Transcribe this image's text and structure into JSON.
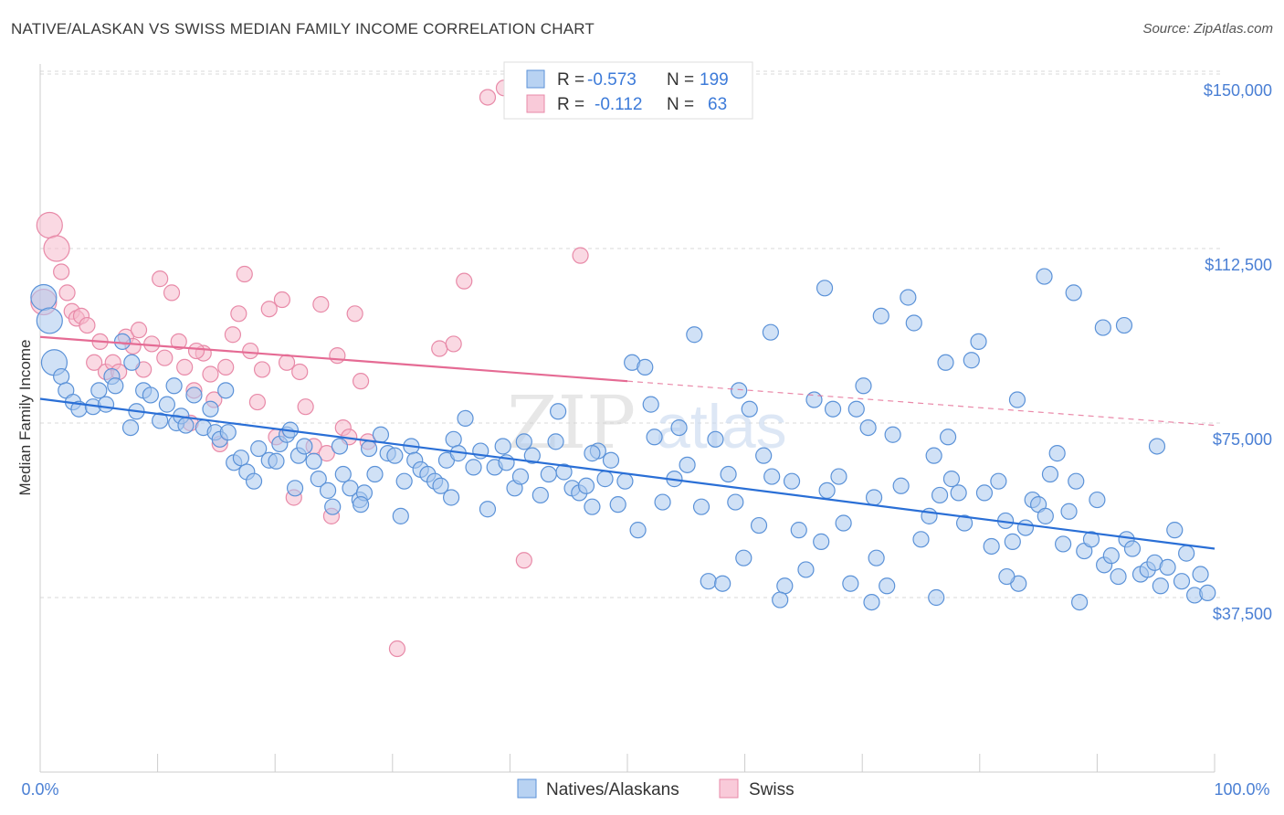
{
  "title": "NATIVE/ALASKAN VS SWISS MEDIAN FAMILY INCOME CORRELATION CHART",
  "source": "Source: ZipAtlas.com",
  "watermark": {
    "zip": "ZIP",
    "atlas": "atlas"
  },
  "colors": {
    "blue_fill": "#a9c8ee",
    "blue_stroke": "#5b92d8",
    "blue_line": "#2a6fd6",
    "pink_fill": "#f6b9cc",
    "pink_stroke": "#e88aa8",
    "pink_line": "#e56b94",
    "grid": "#d9d9d9",
    "tick_text": "#4a7fd4"
  },
  "legend": {
    "rows": [
      {
        "r_label": "R =",
        "r_value": "-0.573",
        "n_label": "N =",
        "n_value": "199"
      },
      {
        "r_label": "R =",
        "r_value": "-0.112",
        "n_label": "N =",
        "n_value": "63"
      }
    ]
  },
  "chart_data": {
    "type": "scatter",
    "title": "NATIVE/ALASKAN VS SWISS MEDIAN FAMILY INCOME CORRELATION CHART",
    "xlabel": "",
    "ylabel": "Median Family Income",
    "xlim": [
      0,
      100
    ],
    "ylim": [
      0,
      155000
    ],
    "x_tick_labels": [
      "0.0%",
      "100.0%"
    ],
    "y_ticks": [
      37500,
      75000,
      112500,
      150000
    ],
    "y_tick_labels": [
      "$37,500",
      "$75,000",
      "$112,500",
      "$150,000"
    ],
    "grid": "horizontal dashed",
    "legend_position": "top-center",
    "series": [
      {
        "name": "Natives/Alaskans",
        "color": "#a9c8ee",
        "r": -0.573,
        "n": 199,
        "trend": {
          "x": [
            0,
            100
          ],
          "y": [
            80200,
            48000
          ]
        },
        "points": [
          [
            0.3,
            102000
          ],
          [
            0.8,
            97000
          ],
          [
            1.2,
            88000
          ],
          [
            1.8,
            85000
          ],
          [
            2.2,
            82000
          ],
          [
            2.8,
            79500
          ],
          [
            3.3,
            78000
          ],
          [
            4.5,
            78500
          ],
          [
            5.0,
            82000
          ],
          [
            5.6,
            79000
          ],
          [
            6.1,
            85000
          ],
          [
            6.4,
            83000
          ],
          [
            7.0,
            92500
          ],
          [
            7.7,
            74000
          ],
          [
            8.2,
            77500
          ],
          [
            8.8,
            82000
          ],
          [
            9.4,
            81000
          ],
          [
            10.2,
            75500
          ],
          [
            10.8,
            79000
          ],
          [
            11.4,
            83000
          ],
          [
            11.6,
            75000
          ],
          [
            12.0,
            76500
          ],
          [
            12.4,
            74500
          ],
          [
            13.1,
            81000
          ],
          [
            13.9,
            74000
          ],
          [
            14.5,
            78000
          ],
          [
            14.9,
            73000
          ],
          [
            15.3,
            71500
          ],
          [
            16.0,
            73000
          ],
          [
            16.5,
            66500
          ],
          [
            17.1,
            67500
          ],
          [
            17.6,
            64500
          ],
          [
            18.2,
            62500
          ],
          [
            18.6,
            69500
          ],
          [
            19.5,
            67000
          ],
          [
            20.1,
            66800
          ],
          [
            20.4,
            70500
          ],
          [
            21.0,
            72500
          ],
          [
            21.3,
            73500
          ],
          [
            22.0,
            68000
          ],
          [
            22.5,
            70000
          ],
          [
            23.3,
            66800
          ],
          [
            23.7,
            63000
          ],
          [
            24.5,
            60500
          ],
          [
            24.9,
            57000
          ],
          [
            25.5,
            70000
          ],
          [
            25.8,
            64000
          ],
          [
            26.4,
            61000
          ],
          [
            27.2,
            58500
          ],
          [
            27.6,
            60000
          ],
          [
            28.0,
            69500
          ],
          [
            28.5,
            64000
          ],
          [
            29.0,
            72500
          ],
          [
            29.6,
            68500
          ],
          [
            30.2,
            68000
          ],
          [
            30.7,
            55000
          ],
          [
            31.0,
            62500
          ],
          [
            31.6,
            70000
          ],
          [
            31.9,
            67000
          ],
          [
            32.4,
            65000
          ],
          [
            33.0,
            64000
          ],
          [
            33.6,
            62500
          ],
          [
            34.1,
            61500
          ],
          [
            34.6,
            67000
          ],
          [
            35.2,
            71500
          ],
          [
            35.6,
            68500
          ],
          [
            36.2,
            76000
          ],
          [
            36.9,
            65500
          ],
          [
            37.5,
            69000
          ],
          [
            38.1,
            56500
          ],
          [
            38.7,
            65500
          ],
          [
            39.4,
            70000
          ],
          [
            39.7,
            66500
          ],
          [
            40.4,
            61000
          ],
          [
            41.2,
            71000
          ],
          [
            41.9,
            68000
          ],
          [
            42.6,
            59500
          ],
          [
            43.3,
            64000
          ],
          [
            43.9,
            71000
          ],
          [
            44.6,
            64500
          ],
          [
            45.3,
            61000
          ],
          [
            45.9,
            60000
          ],
          [
            46.5,
            61500
          ],
          [
            47.0,
            57000
          ],
          [
            47.5,
            69000
          ],
          [
            48.1,
            63000
          ],
          [
            48.6,
            67000
          ],
          [
            49.2,
            57500
          ],
          [
            49.8,
            62500
          ],
          [
            50.4,
            88000
          ],
          [
            50.9,
            52000
          ],
          [
            51.5,
            87000
          ],
          [
            52.0,
            79000
          ],
          [
            53.0,
            58000
          ],
          [
            54.0,
            63000
          ],
          [
            54.4,
            74000
          ],
          [
            55.1,
            66000
          ],
          [
            55.7,
            94000
          ],
          [
            56.3,
            57000
          ],
          [
            56.9,
            41000
          ],
          [
            57.5,
            71500
          ],
          [
            58.1,
            40500
          ],
          [
            58.6,
            64000
          ],
          [
            59.2,
            58000
          ],
          [
            59.9,
            46000
          ],
          [
            60.4,
            78000
          ],
          [
            61.2,
            53000
          ],
          [
            61.6,
            68000
          ],
          [
            62.3,
            63500
          ],
          [
            63.4,
            40000
          ],
          [
            64.0,
            62500
          ],
          [
            64.6,
            52000
          ],
          [
            65.2,
            43500
          ],
          [
            65.9,
            80000
          ],
          [
            66.5,
            49500
          ],
          [
            67.0,
            60500
          ],
          [
            67.5,
            78000
          ],
          [
            68.0,
            63500
          ],
          [
            68.4,
            53500
          ],
          [
            69.0,
            40500
          ],
          [
            69.5,
            78000
          ],
          [
            70.1,
            83000
          ],
          [
            70.5,
            74000
          ],
          [
            71.0,
            59000
          ],
          [
            71.6,
            98000
          ],
          [
            72.1,
            40000
          ],
          [
            72.6,
            72500
          ],
          [
            73.3,
            61500
          ],
          [
            73.9,
            102000
          ],
          [
            74.4,
            96500
          ],
          [
            75.0,
            50000
          ],
          [
            75.7,
            55000
          ],
          [
            76.1,
            68000
          ],
          [
            76.6,
            59500
          ],
          [
            77.1,
            88000
          ],
          [
            77.6,
            63000
          ],
          [
            78.2,
            60000
          ],
          [
            78.7,
            53500
          ],
          [
            79.3,
            88500
          ],
          [
            79.9,
            92500
          ],
          [
            80.4,
            60000
          ],
          [
            81.0,
            48500
          ],
          [
            81.6,
            62500
          ],
          [
            82.2,
            54000
          ],
          [
            82.8,
            49500
          ],
          [
            83.3,
            40500
          ],
          [
            83.9,
            52500
          ],
          [
            84.5,
            58500
          ],
          [
            85.0,
            57500
          ],
          [
            85.6,
            55000
          ],
          [
            86.0,
            64000
          ],
          [
            86.6,
            68500
          ],
          [
            87.1,
            49000
          ],
          [
            87.6,
            56000
          ],
          [
            88.2,
            62500
          ],
          [
            88.9,
            47500
          ],
          [
            89.5,
            50000
          ],
          [
            90.0,
            58500
          ],
          [
            90.6,
            44500
          ],
          [
            91.2,
            46500
          ],
          [
            91.8,
            42000
          ],
          [
            92.5,
            50000
          ],
          [
            93.0,
            48000
          ],
          [
            93.7,
            42500
          ],
          [
            94.3,
            43500
          ],
          [
            94.9,
            45000
          ],
          [
            95.4,
            40000
          ],
          [
            96.0,
            44000
          ],
          [
            96.6,
            52000
          ],
          [
            97.2,
            41000
          ],
          [
            97.6,
            47000
          ],
          [
            98.3,
            38000
          ],
          [
            98.8,
            42500
          ],
          [
            99.4,
            38500
          ],
          [
            62.2,
            94500
          ],
          [
            66.8,
            104000
          ],
          [
            85.5,
            106500
          ],
          [
            88.0,
            103000
          ],
          [
            90.5,
            95500
          ],
          [
            92.3,
            96000
          ],
          [
            7.8,
            88000
          ],
          [
            15.8,
            82000
          ],
          [
            44.1,
            77500
          ],
          [
            52.3,
            72000
          ],
          [
            77.3,
            72000
          ],
          [
            83.2,
            80000
          ],
          [
            95.1,
            70000
          ],
          [
            47.0,
            68500
          ],
          [
            27.3,
            57500
          ],
          [
            21.7,
            61000
          ],
          [
            35.0,
            59000
          ],
          [
            40.9,
            63500
          ],
          [
            59.5,
            82000
          ],
          [
            63.0,
            37000
          ],
          [
            70.8,
            36500
          ],
          [
            76.3,
            37500
          ],
          [
            82.3,
            42000
          ],
          [
            88.5,
            36500
          ],
          [
            71.2,
            46000
          ]
        ]
      },
      {
        "name": "Swiss",
        "color": "#f6b9cc",
        "r": -0.112,
        "n": 63,
        "trend": {
          "x": [
            0,
            50
          ],
          "y": [
            93500,
            84000
          ],
          "dashed_extension": {
            "x": [
              50,
              100
            ],
            "y": [
              84000,
              74500
            ]
          }
        },
        "points": [
          [
            0.3,
            101000
          ],
          [
            0.8,
            117500
          ],
          [
            1.4,
            112500
          ],
          [
            1.8,
            107500
          ],
          [
            2.3,
            103000
          ],
          [
            2.7,
            99000
          ],
          [
            3.1,
            97500
          ],
          [
            3.5,
            98000
          ],
          [
            4.0,
            96000
          ],
          [
            4.6,
            88000
          ],
          [
            5.1,
            92500
          ],
          [
            5.6,
            86000
          ],
          [
            6.2,
            88000
          ],
          [
            6.7,
            86000
          ],
          [
            7.3,
            93500
          ],
          [
            7.9,
            91500
          ],
          [
            8.4,
            95000
          ],
          [
            8.8,
            86500
          ],
          [
            9.5,
            92000
          ],
          [
            10.2,
            106000
          ],
          [
            10.6,
            89000
          ],
          [
            11.2,
            103000
          ],
          [
            11.8,
            92500
          ],
          [
            12.3,
            87000
          ],
          [
            12.8,
            75000
          ],
          [
            13.1,
            82000
          ],
          [
            13.9,
            90000
          ],
          [
            14.5,
            85500
          ],
          [
            14.8,
            80000
          ],
          [
            15.3,
            70500
          ],
          [
            15.8,
            87000
          ],
          [
            16.4,
            94000
          ],
          [
            16.9,
            98500
          ],
          [
            17.4,
            107000
          ],
          [
            17.9,
            90500
          ],
          [
            18.5,
            79500
          ],
          [
            18.9,
            86500
          ],
          [
            19.5,
            99500
          ],
          [
            20.1,
            72000
          ],
          [
            20.6,
            101500
          ],
          [
            21.0,
            88000
          ],
          [
            21.6,
            59000
          ],
          [
            22.1,
            86000
          ],
          [
            22.6,
            78500
          ],
          [
            23.3,
            70000
          ],
          [
            23.9,
            100500
          ],
          [
            24.4,
            68500
          ],
          [
            24.8,
            55000
          ],
          [
            25.3,
            89500
          ],
          [
            25.8,
            74000
          ],
          [
            26.3,
            72000
          ],
          [
            26.8,
            98500
          ],
          [
            27.3,
            84000
          ],
          [
            27.9,
            71000
          ],
          [
            30.4,
            26500
          ],
          [
            34.0,
            91000
          ],
          [
            35.2,
            92000
          ],
          [
            36.1,
            105500
          ],
          [
            38.1,
            145000
          ],
          [
            39.5,
            147000
          ],
          [
            41.2,
            45500
          ],
          [
            46.0,
            111000
          ],
          [
            13.3,
            90500
          ]
        ]
      }
    ]
  },
  "bottom_legend": [
    "Natives/Alaskans",
    "Swiss"
  ]
}
